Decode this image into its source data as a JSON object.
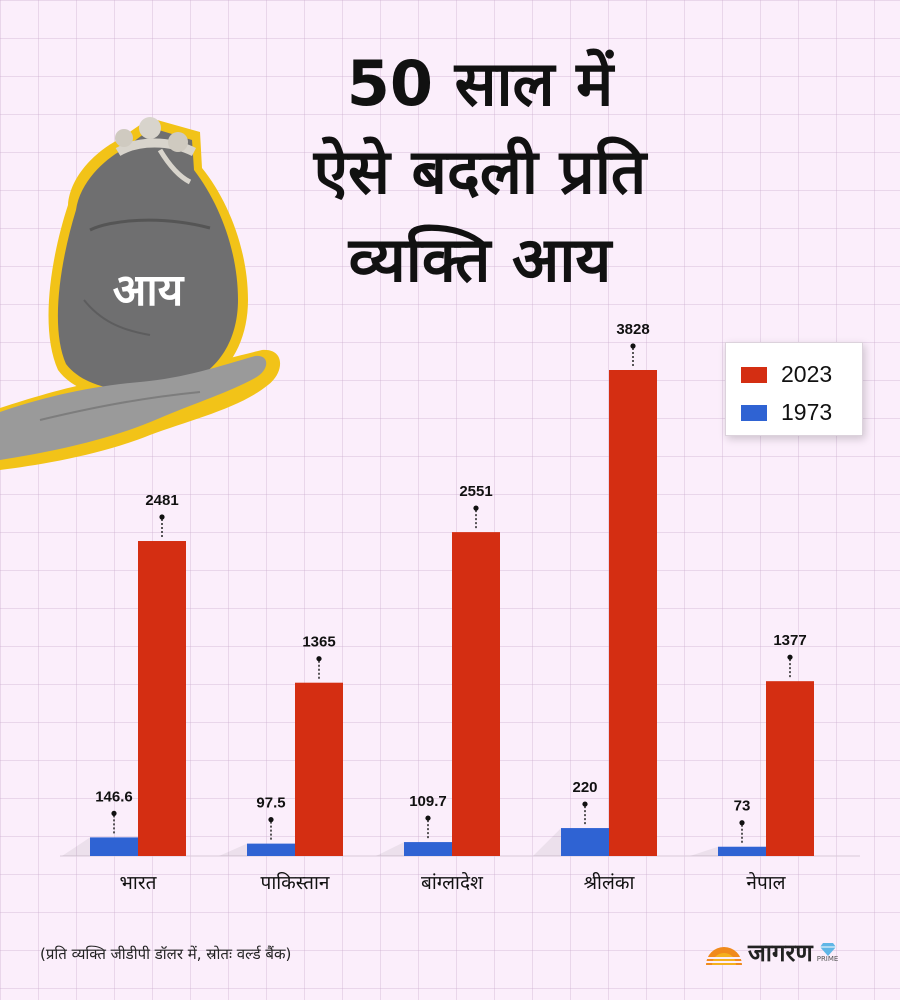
{
  "title_lines": [
    "50 साल में",
    "ऐसे बदली प्रति",
    "व्यक्ति आय"
  ],
  "bag_label": "आय",
  "footnote": "(प्रति व्यक्ति जीडीपी डॉलर में, स्रोतः वर्ल्ड बैंक)",
  "brand": {
    "name": "जागरण",
    "sub": "PRIME"
  },
  "colors": {
    "series_2023": "#d42e12",
    "series_1973": "#2f63d3"
  },
  "chart_data": {
    "type": "bar",
    "title": "50 साल में ऐसे बदली प्रति व्यक्ति आय",
    "categories": [
      "भारत",
      "पाकिस्तान",
      "बांग्लादेश",
      "श्रीलंका",
      "नेपाल"
    ],
    "series": [
      {
        "name": "1973",
        "values": [
          146.6,
          97.5,
          109.7,
          220,
          73
        ]
      },
      {
        "name": "2023",
        "values": [
          2481,
          1365,
          2551,
          3828,
          1377
        ]
      }
    ],
    "ylim": [
      0,
      3828
    ],
    "legend": "top-right",
    "legend_order": [
      "2023",
      "1973"
    ],
    "data_labels": true,
    "grid": false
  }
}
